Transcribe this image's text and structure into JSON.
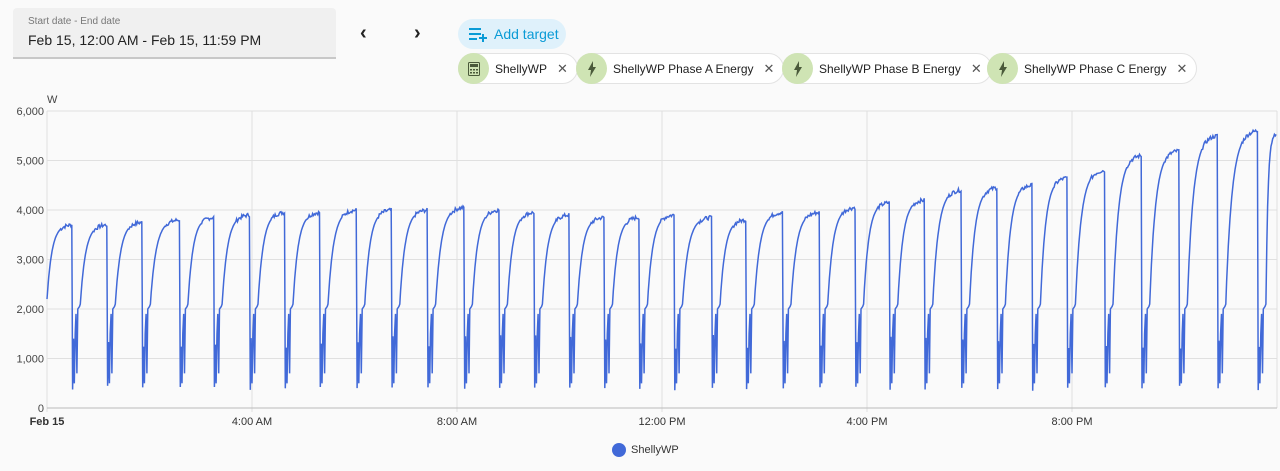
{
  "date_range": {
    "label": "Start date - End date",
    "value": "Feb 15, 12:00 AM - Feb 15, 11:59 PM"
  },
  "nav": {
    "prev": "‹",
    "next": "›"
  },
  "add_target": {
    "label": "Add target",
    "icon": "playlist-plus-icon"
  },
  "targets": [
    {
      "label": "ShellyWP",
      "icon": "calculator-icon"
    },
    {
      "label": "ShellyWP Phase A Energy",
      "icon": "lightning-bolt-icon"
    },
    {
      "label": "ShellyWP Phase B Energy",
      "icon": "lightning-bolt-icon"
    },
    {
      "label": "ShellyWP Phase C Energy",
      "icon": "lightning-bolt-icon"
    }
  ],
  "chart_data": {
    "type": "line",
    "ylabel": "W",
    "ylim": [
      0,
      6000
    ],
    "yticks": [
      "0",
      "1,000",
      "2,000",
      "3,000",
      "4,000",
      "5,000",
      "6,000"
    ],
    "xticks": [
      "Feb 15",
      "4:00 AM",
      "8:00 AM",
      "12:00 PM",
      "4:00 PM",
      "8:00 PM"
    ],
    "xrange": [
      "00:00",
      "24:00"
    ],
    "grid": true,
    "legend_position": "bottom",
    "color": "#4169d8",
    "series": [
      {
        "name": "ShellyWP",
        "start_value": 2200,
        "cycles": [
          {
            "drop": "00:30",
            "peak": 3700
          },
          {
            "drop": "01:11",
            "peak": 3700
          },
          {
            "drop": "01:52",
            "peak": 3750
          },
          {
            "drop": "02:36",
            "peak": 3800
          },
          {
            "drop": "03:16",
            "peak": 3850
          },
          {
            "drop": "03:58",
            "peak": 3900
          },
          {
            "drop": "04:39",
            "peak": 3950
          },
          {
            "drop": "05:20",
            "peak": 3950
          },
          {
            "drop": "06:03",
            "peak": 4000
          },
          {
            "drop": "06:44",
            "peak": 4000
          },
          {
            "drop": "07:26",
            "peak": 4000
          },
          {
            "drop": "08:09",
            "peak": 4050
          },
          {
            "drop": "08:50",
            "peak": 4000
          },
          {
            "drop": "09:31",
            "peak": 3950
          },
          {
            "drop": "10:12",
            "peak": 3900
          },
          {
            "drop": "10:53",
            "peak": 3850
          },
          {
            "drop": "11:34",
            "peak": 3850
          },
          {
            "drop": "12:15",
            "peak": 3900
          },
          {
            "drop": "12:59",
            "peak": 3850
          },
          {
            "drop": "13:39",
            "peak": 3800
          },
          {
            "drop": "14:22",
            "peak": 3950
          },
          {
            "drop": "15:05",
            "peak": 3950
          },
          {
            "drop": "15:47",
            "peak": 4050
          },
          {
            "drop": "16:27",
            "peak": 4150
          },
          {
            "drop": "17:08",
            "peak": 4200
          },
          {
            "drop": "17:51",
            "peak": 4400
          },
          {
            "drop": "18:33",
            "peak": 4450
          },
          {
            "drop": "19:14",
            "peak": 4500
          },
          {
            "drop": "19:55",
            "peak": 4650
          },
          {
            "drop": "20:39",
            "peak": 4800
          },
          {
            "drop": "21:22",
            "peak": 5100
          },
          {
            "drop": "22:06",
            "peak": 5200
          },
          {
            "drop": "22:51",
            "peak": 5500
          },
          {
            "drop": "23:38",
            "peak": 5600
          }
        ],
        "end_value": 5550
      }
    ]
  }
}
